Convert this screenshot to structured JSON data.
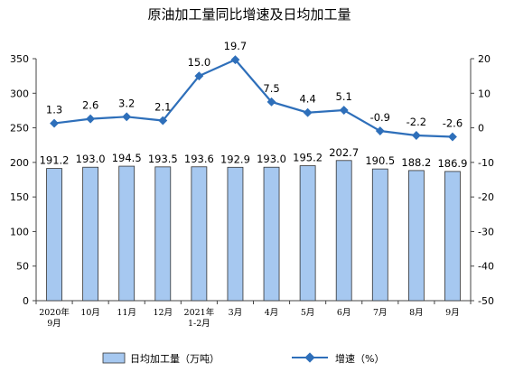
{
  "chart_data": {
    "type": "bar+line",
    "title": "原油加工量同比增速及日均加工量",
    "categories": [
      [
        "2020年",
        "9月"
      ],
      [
        "10月"
      ],
      [
        "11月"
      ],
      [
        "12月"
      ],
      [
        "2021年",
        "1-2月"
      ],
      [
        "3月"
      ],
      [
        "4月"
      ],
      [
        "5月"
      ],
      [
        "6月"
      ],
      [
        "7月"
      ],
      [
        "8月"
      ],
      [
        "9月"
      ]
    ],
    "series": [
      {
        "name": "日均加工量（万吨）",
        "type": "bar",
        "axis": "left",
        "color": "#a6c8f0",
        "values": [
          191.2,
          193.0,
          194.5,
          193.5,
          193.6,
          192.9,
          193.0,
          195.2,
          202.7,
          190.5,
          188.2,
          186.9
        ],
        "labels": [
          "191.2",
          "193.0",
          "194.5",
          "193.5",
          "193.6",
          "192.9",
          "193.0",
          "195.2",
          "202.7",
          "190.5",
          "188.2",
          "186.9"
        ]
      },
      {
        "name": "增速（%）",
        "type": "line",
        "axis": "right",
        "color": "#2e6fba",
        "values": [
          1.3,
          2.6,
          3.2,
          2.1,
          15.0,
          19.7,
          7.5,
          4.4,
          5.1,
          -0.9,
          -2.2,
          -2.6
        ],
        "labels": [
          "1.3",
          "2.6",
          "3.2",
          "2.1",
          "15.0",
          "19.7",
          "7.5",
          "4.4",
          "5.1",
          "-0.9",
          "-2.2",
          "-2.6"
        ]
      }
    ],
    "y_left": {
      "ylim": [
        0,
        350
      ],
      "ticks": [
        "0",
        "50",
        "100",
        "150",
        "200",
        "250",
        "300",
        "350"
      ]
    },
    "y_right": {
      "ylim": [
        -50,
        20
      ],
      "ticks": [
        "-50",
        "-40",
        "-30",
        "-20",
        "-10",
        "0",
        "10",
        "20"
      ]
    },
    "grid": false,
    "legend_position": "bottom"
  }
}
